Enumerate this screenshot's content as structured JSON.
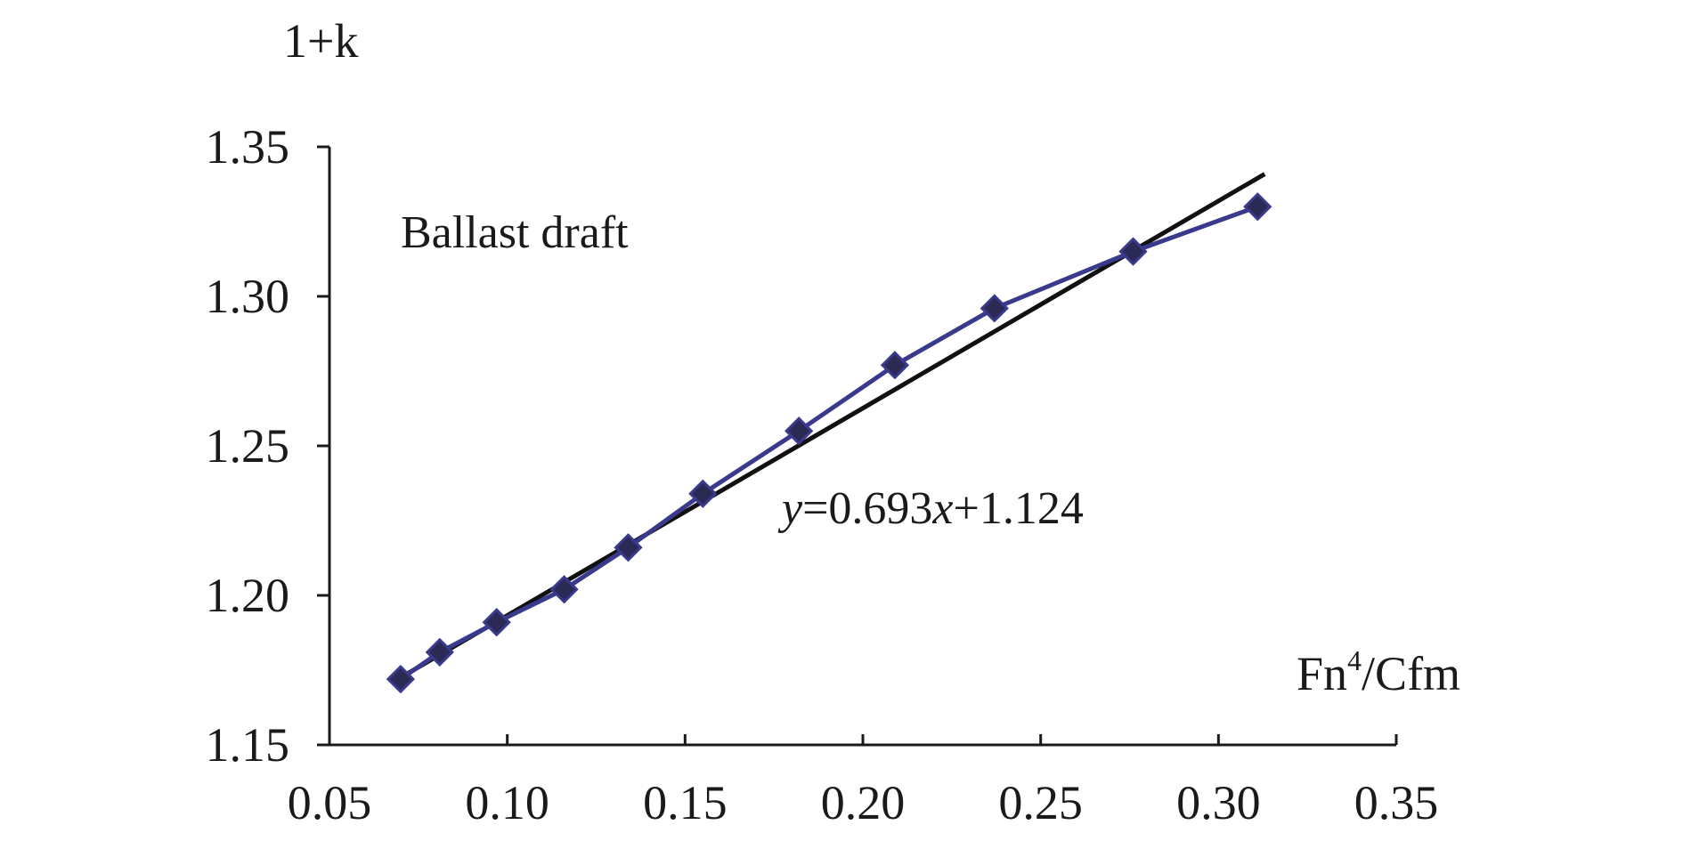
{
  "chart_data": {
    "type": "scatter",
    "xlabel": "Fn⁴/Cfm",
    "ylabel": "1+k",
    "annotation": "Ballast draft",
    "equation": {
      "prefix": "y",
      "middle": "=0.693",
      "var": "x",
      "suffix": "+1.124"
    },
    "xlim": [
      0.05,
      0.35
    ],
    "ylim": [
      1.15,
      1.35
    ],
    "x_ticks": [
      "0.05",
      "0.10",
      "0.15",
      "0.20",
      "0.25",
      "0.30",
      "0.35"
    ],
    "y_ticks": [
      "1.15",
      "1.20",
      "1.25",
      "1.30",
      "1.35"
    ],
    "grid": false,
    "legend": "none",
    "series": [
      {
        "x": [
          0.07,
          0.081,
          0.097,
          0.116,
          0.134,
          0.155,
          0.182,
          0.209,
          0.237,
          0.276,
          0.311
        ],
        "y": [
          1.172,
          1.181,
          1.191,
          1.202,
          1.216,
          1.234,
          1.255,
          1.277,
          1.296,
          1.315,
          1.33
        ],
        "color": "#3a3a8c",
        "marker": "diamond",
        "line": true
      }
    ],
    "fit_line": {
      "slope": 0.693,
      "intercept": 1.124,
      "x_range": [
        0.068,
        0.313
      ],
      "color": "#111111"
    }
  }
}
